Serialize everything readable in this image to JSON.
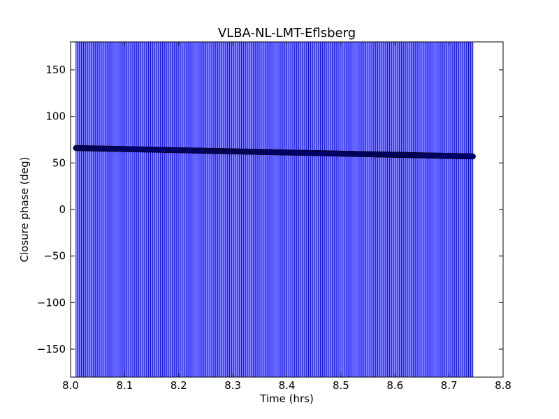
{
  "chart_data": {
    "type": "scatter",
    "title": "VLBA-NL-LMT-Eflsberg",
    "xlabel": "Time (hrs)",
    "ylabel": "Closure phase (deg)",
    "xlim": [
      8.0,
      8.8
    ],
    "ylim": [
      -180,
      180
    ],
    "xticks": [
      8.0,
      8.1,
      8.2,
      8.3,
      8.4,
      8.5,
      8.6,
      8.7,
      8.8
    ],
    "xtick_labels": [
      "8.0",
      "8.1",
      "8.2",
      "8.3",
      "8.4",
      "8.5",
      "8.6",
      "8.7",
      "8.8"
    ],
    "yticks": [
      150,
      100,
      50,
      0,
      -50,
      -100,
      -150
    ],
    "ytick_labels": [
      "150",
      "100",
      "50",
      "0",
      "−50",
      "−100",
      "−150"
    ],
    "grid": false,
    "legend": "none",
    "series": [
      {
        "color": "#0000ff",
        "marker": "o",
        "error_bars": "vertical, spanning full y range",
        "x_start": 8.01,
        "x_end": 8.745,
        "x_step": 0.002,
        "y_start": 66.0,
        "y_end": 57.0
      }
    ]
  }
}
